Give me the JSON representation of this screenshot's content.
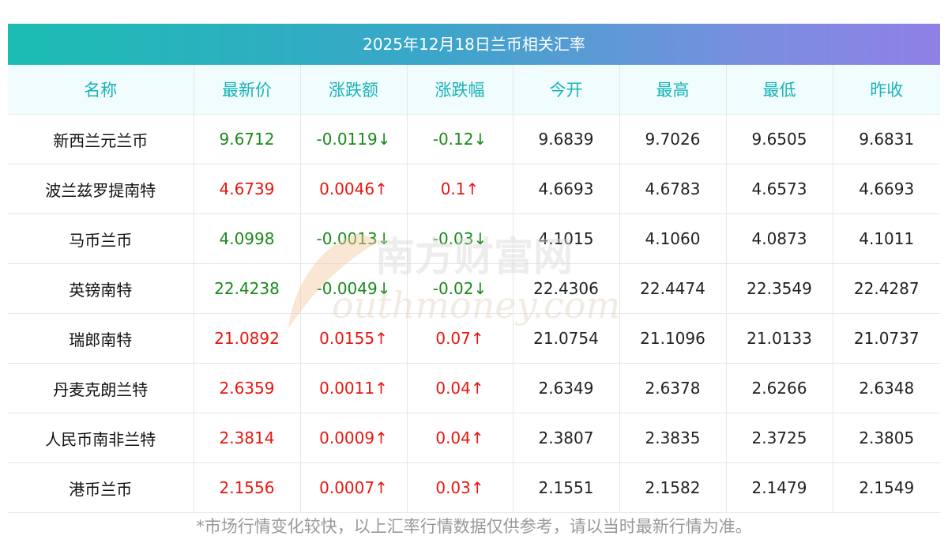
{
  "title": "2025年12月18日兰币相关汇率",
  "columns": [
    "名称",
    "最新价",
    "涨跌额",
    "涨跌幅",
    "今开",
    "最高",
    "最低",
    "昨收"
  ],
  "rows": [
    {
      "name": "新西兰元兰币",
      "price": "9.6712",
      "change": "-0.0119↓",
      "pct": "-0.12↓",
      "open": "9.6839",
      "high": "9.7026",
      "low": "9.6505",
      "prev": "9.6831",
      "dir": "down"
    },
    {
      "name": "波兰兹罗提南特",
      "price": "4.6739",
      "change": "0.0046↑",
      "pct": "0.1↑",
      "open": "4.6693",
      "high": "4.6783",
      "low": "4.6573",
      "prev": "4.6693",
      "dir": "up"
    },
    {
      "name": "马币兰币",
      "price": "4.0998",
      "change": "-0.0013↓",
      "pct": "-0.03↓",
      "open": "4.1015",
      "high": "4.1060",
      "low": "4.0873",
      "prev": "4.1011",
      "dir": "down"
    },
    {
      "name": "英镑南特",
      "price": "22.4238",
      "change": "-0.0049↓",
      "pct": "-0.02↓",
      "open": "22.4306",
      "high": "22.4474",
      "low": "22.3549",
      "prev": "22.4287",
      "dir": "down"
    },
    {
      "name": "瑞郎南特",
      "price": "21.0892",
      "change": "0.0155↑",
      "pct": "0.07↑",
      "open": "21.0754",
      "high": "21.1096",
      "low": "21.0133",
      "prev": "21.0737",
      "dir": "up"
    },
    {
      "name": "丹麦克朗兰特",
      "price": "2.6359",
      "change": "0.0011↑",
      "pct": "0.04↑",
      "open": "2.6349",
      "high": "2.6378",
      "low": "2.6266",
      "prev": "2.6348",
      "dir": "up"
    },
    {
      "name": "人民币南非兰特",
      "price": "2.3814",
      "change": "0.0009↑",
      "pct": "0.04↑",
      "open": "2.3807",
      "high": "2.3835",
      "low": "2.3725",
      "prev": "2.3805",
      "dir": "up"
    },
    {
      "name": "港币兰币",
      "price": "2.1556",
      "change": "0.0007↑",
      "pct": "0.03↑",
      "open": "2.1551",
      "high": "2.1582",
      "low": "2.1479",
      "prev": "2.1549",
      "dir": "up"
    }
  ],
  "watermark": {
    "cn": "南方财富网",
    "en": "outhmoney.com"
  },
  "note": "*市场行情变化较快，以上汇率行情数据仅供参考，请以当时最新行情为准。",
  "colors": {
    "up": "#e8160f",
    "down": "#1a8a1a",
    "header_text": "#1ab3b5"
  }
}
